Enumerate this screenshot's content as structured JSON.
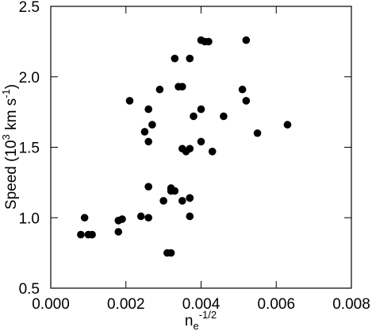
{
  "chart_data": {
    "type": "scatter",
    "xlabel": {
      "text": "n",
      "subscript": "e",
      "superscript": "-1/2"
    },
    "ylabel": [
      "Speed (10",
      "3",
      " km s",
      "-1",
      ")"
    ],
    "color": "#000000",
    "x": [
      0.0008,
      0.0009,
      0.001,
      0.0011,
      0.0018,
      0.0018,
      0.0019,
      0.0021,
      0.0024,
      0.0025,
      0.0026,
      0.0026,
      0.0026,
      0.0026,
      0.0027,
      0.0029,
      0.003,
      0.0031,
      0.0032,
      0.0032,
      0.0032,
      0.0033,
      0.0033,
      0.0034,
      0.0035,
      0.0035,
      0.0035,
      0.0036,
      0.0037,
      0.0037,
      0.0037,
      0.0037,
      0.0037,
      0.0038,
      0.004,
      0.004,
      0.004,
      0.0041,
      0.0042,
      0.0043,
      0.0046,
      0.0051,
      0.0052,
      0.0052,
      0.0055,
      0.0063
    ],
    "values": [
      0.88,
      1.0,
      0.88,
      0.88,
      0.9,
      0.98,
      0.99,
      1.83,
      1.01,
      1.61,
      1.22,
      1.0,
      1.54,
      1.77,
      1.66,
      1.91,
      1.12,
      0.75,
      0.75,
      1.21,
      1.19,
      2.13,
      1.19,
      1.93,
      1.93,
      1.49,
      1.12,
      1.47,
      1.14,
      1.14,
      1.01,
      1.49,
      2.13,
      1.72,
      2.26,
      1.77,
      1.54,
      2.25,
      2.25,
      1.47,
      1.72,
      1.91,
      1.83,
      2.26,
      1.6,
      1.66
    ],
    "xlim": [
      0,
      0.008
    ],
    "xticks": [
      {
        "value": 0,
        "label": "0.000"
      },
      {
        "value": 0.002,
        "label": "0.002"
      },
      {
        "value": 0.004,
        "label": "0.004"
      },
      {
        "value": 0.006,
        "label": "0.006"
      },
      {
        "value": 0.008,
        "label": "0.008"
      }
    ],
    "ylim": [
      0.5,
      2.5
    ],
    "yticks": [
      {
        "value": 0.5,
        "label": "0.5"
      },
      {
        "value": 1.0,
        "label": "1.0"
      },
      {
        "value": 1.5,
        "label": "1.5"
      },
      {
        "value": 2.0,
        "label": "2.0"
      },
      {
        "value": 2.5,
        "label": "2.5"
      }
    ]
  }
}
